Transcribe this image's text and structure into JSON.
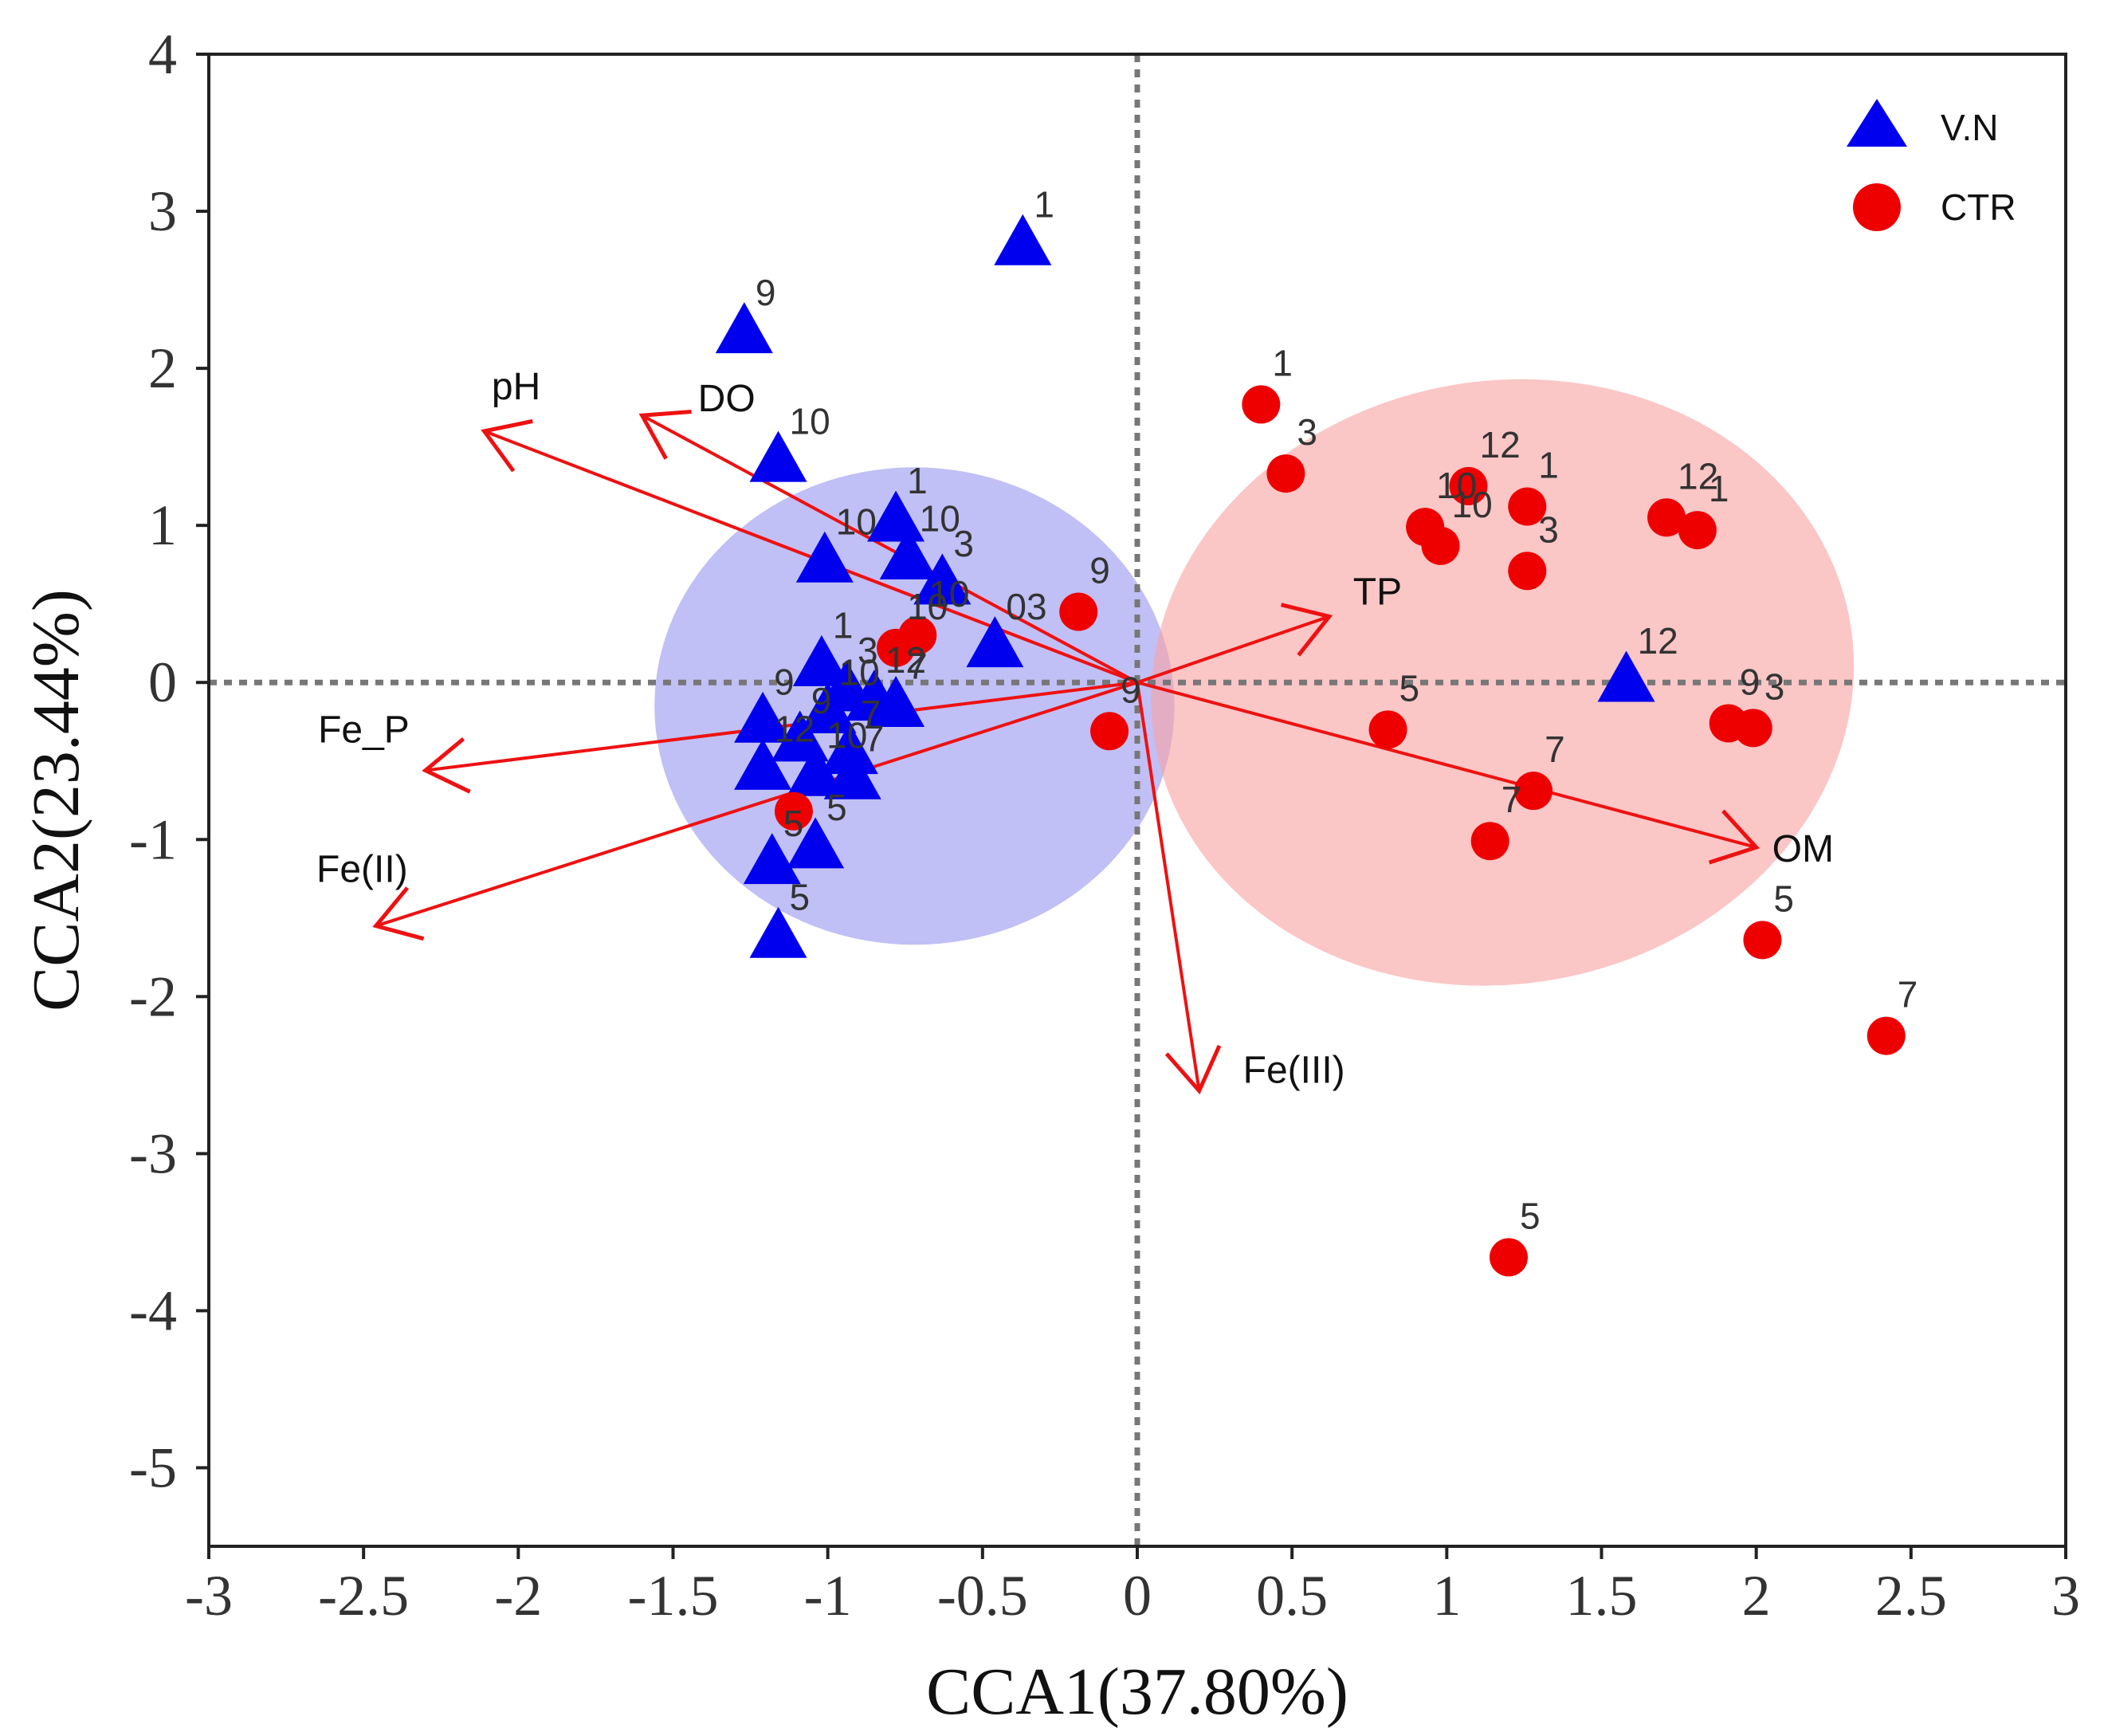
{
  "chart_data": {
    "type": "scatter",
    "xlabel": "CCA1(37.80%)",
    "ylabel": "CCA2(23.44%)",
    "xlim": [
      -3,
      3
    ],
    "ylim": [
      -5.5,
      4
    ],
    "xticks": [
      -3,
      -2.5,
      -2,
      -1.5,
      -1,
      -0.5,
      0,
      0.5,
      1,
      1.5,
      2,
      2.5,
      3
    ],
    "xtick_labels": [
      "-3",
      "-2.5",
      "-2",
      "-1.5",
      "-1",
      "-0.5",
      "0",
      "0.5",
      "1",
      "1.5",
      "2",
      "2.5",
      "3"
    ],
    "yticks": [
      -5,
      -4,
      -3,
      -2,
      -1,
      0,
      1,
      2,
      3,
      4
    ],
    "ytick_labels": [
      "-5",
      "-4",
      "-3",
      "-2",
      "-1",
      "0",
      "1",
      "2",
      "3",
      "4"
    ],
    "reference_lines": {
      "x": 0,
      "y": 0,
      "style": "dotted",
      "color": "#777777"
    },
    "grid": false,
    "legend_position": "top-right",
    "series": [
      {
        "name": "V.N",
        "marker": "triangle",
        "color": "#0000ee",
        "ellipse_color": "#9999f0",
        "ellipse": {
          "cx": -0.72,
          "cy": -0.15,
          "rx": 0.84,
          "ry": 1.52,
          "angle": 0
        },
        "points": [
          {
            "x": -0.37,
            "y": 2.78,
            "label": "1"
          },
          {
            "x": -1.27,
            "y": 2.22,
            "label": "9"
          },
          {
            "x": -1.16,
            "y": 1.4,
            "label": "10"
          },
          {
            "x": -0.78,
            "y": 1.02,
            "label": "1"
          },
          {
            "x": -1.01,
            "y": 0.76,
            "label": "10"
          },
          {
            "x": -0.74,
            "y": 0.78,
            "label": "10"
          },
          {
            "x": -0.63,
            "y": 0.62,
            "label": "3"
          },
          {
            "x": -0.46,
            "y": 0.22,
            "label": "03"
          },
          {
            "x": -1.02,
            "y": 0.1,
            "label": "1"
          },
          {
            "x": -0.94,
            "y": -0.06,
            "label": "3"
          },
          {
            "x": -0.85,
            "y": -0.12,
            "label": "12"
          },
          {
            "x": -0.78,
            "y": -0.16,
            "label": "7"
          },
          {
            "x": -1.21,
            "y": -0.26,
            "label": "9"
          },
          {
            "x": -1.09,
            "y": -0.38,
            "label": "9"
          },
          {
            "x": -1.0,
            "y": -0.2,
            "label": "10"
          },
          {
            "x": -0.93,
            "y": -0.46,
            "label": "7"
          },
          {
            "x": -1.21,
            "y": -0.56,
            "label": "12"
          },
          {
            "x": -1.04,
            "y": -0.6,
            "label": "10"
          },
          {
            "x": -0.92,
            "y": -0.62,
            "label": "7"
          },
          {
            "x": -1.04,
            "y": -1.06,
            "label": "5"
          },
          {
            "x": -1.18,
            "y": -1.16,
            "label": "5"
          },
          {
            "x": -1.16,
            "y": -1.63,
            "label": "5"
          },
          {
            "x": 1.58,
            "y": 0.0,
            "label": "12"
          }
        ]
      },
      {
        "name": "CTR",
        "marker": "circle",
        "color": "#ee0000",
        "ellipse_color": "#f8a3a3",
        "ellipse": {
          "cx": 1.18,
          "cy": 0.0,
          "rx": 1.14,
          "ry": 1.92,
          "angle": -10
        },
        "points": [
          {
            "x": 0.4,
            "y": 1.77,
            "label": "1"
          },
          {
            "x": 0.48,
            "y": 1.33,
            "label": "3"
          },
          {
            "x": 1.07,
            "y": 1.25,
            "label": "12"
          },
          {
            "x": 1.26,
            "y": 1.12,
            "label": "1"
          },
          {
            "x": 0.93,
            "y": 0.99,
            "label": "10"
          },
          {
            "x": 0.98,
            "y": 0.87,
            "label": "10"
          },
          {
            "x": 1.26,
            "y": 0.71,
            "label": "3"
          },
          {
            "x": 1.71,
            "y": 1.05,
            "label": "12"
          },
          {
            "x": 1.81,
            "y": 0.97,
            "label": "1"
          },
          {
            "x": -0.19,
            "y": 0.45,
            "label": "9"
          },
          {
            "x": -0.78,
            "y": 0.22,
            "label": "10"
          },
          {
            "x": -0.71,
            "y": 0.3,
            "label": "10"
          },
          {
            "x": -0.09,
            "y": -0.31,
            "label": "9"
          },
          {
            "x": -1.11,
            "y": -0.82,
            "label": ""
          },
          {
            "x": 0.81,
            "y": -0.3,
            "label": "5"
          },
          {
            "x": 1.28,
            "y": -0.69,
            "label": "7"
          },
          {
            "x": 1.14,
            "y": -1.01,
            "label": "7"
          },
          {
            "x": 1.91,
            "y": -0.26,
            "label": "9"
          },
          {
            "x": 1.99,
            "y": -0.29,
            "label": "3"
          },
          {
            "x": 2.02,
            "y": -1.64,
            "label": "5"
          },
          {
            "x": 2.42,
            "y": -2.25,
            "label": "7"
          },
          {
            "x": 1.2,
            "y": -3.66,
            "label": "5"
          }
        ]
      }
    ],
    "vectors": [
      {
        "name": "pH",
        "x": -2.11,
        "y": 1.6
      },
      {
        "name": "DO",
        "x": -1.6,
        "y": 1.7
      },
      {
        "name": "TP",
        "x": 0.62,
        "y": 0.42
      },
      {
        "name": "Fe_P",
        "x": -2.3,
        "y": -0.56
      },
      {
        "name": "Fe(II)",
        "x": -2.46,
        "y": -1.55
      },
      {
        "name": "OM",
        "x": 2.0,
        "y": -1.05
      },
      {
        "name": "Fe(III)",
        "x": 0.2,
        "y": -2.6
      }
    ],
    "vector_color": "#ee1111"
  }
}
